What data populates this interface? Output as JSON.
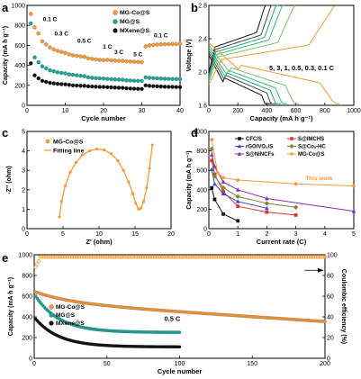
{
  "figure": {
    "panels": [
      {
        "id": "a",
        "letter": "a"
      },
      {
        "id": "b",
        "letter": "b"
      },
      {
        "id": "c",
        "letter": "c"
      },
      {
        "id": "d",
        "letter": "d"
      },
      {
        "id": "e",
        "letter": "e"
      }
    ]
  },
  "colors": {
    "mgco": "#F39A3B",
    "mg": "#1FA39A",
    "mxene": "#111111",
    "cfc": "#111111",
    "rgo": "#4040C8",
    "sninc": "#8A2BB0",
    "simchs": "#E03030",
    "scohc": "#7A8A2A",
    "mgcopanel": "#F39A3B"
  },
  "chart_data": [
    {
      "panel": "a",
      "type": "scatter",
      "xlabel": "Cycle number",
      "ylabel": "Capacity (mA h g⁻¹)",
      "xlim": [
        0,
        40
      ],
      "ylim": [
        0,
        1000
      ],
      "xticks": [
        "0",
        "10",
        "20",
        "30",
        "40"
      ],
      "yticks": [
        "0",
        "200",
        "400",
        "600",
        "800",
        "1000"
      ],
      "rate_labels": [
        "0.1 C",
        "0.3 C",
        "0.5 C",
        "1 C",
        "3 C",
        "5 C",
        "0.1 C"
      ],
      "legend": [
        "MG-Co@S",
        "MG@S",
        "MXene@S"
      ],
      "series": [
        {
          "name": "MG-Co@S",
          "x": [
            1,
            2,
            3,
            4,
            5,
            6,
            7,
            8,
            9,
            10,
            11,
            12,
            13,
            14,
            15,
            16,
            17,
            18,
            19,
            20,
            21,
            22,
            23,
            24,
            25,
            26,
            27,
            28,
            29,
            30,
            31,
            32,
            33,
            34,
            35,
            36,
            37,
            38,
            39,
            40
          ],
          "values": [
            915,
            780,
            720,
            640,
            610,
            580,
            560,
            545,
            535,
            525,
            510,
            500,
            495,
            490,
            485,
            470,
            465,
            460,
            455,
            452,
            455,
            450,
            448,
            446,
            445,
            440,
            438,
            436,
            434,
            432,
            590,
            600,
            605,
            608,
            610,
            612,
            612,
            613,
            614,
            615
          ]
        },
        {
          "name": "MG@S",
          "x": [
            1,
            2,
            3,
            4,
            5,
            6,
            7,
            8,
            9,
            10,
            11,
            12,
            13,
            14,
            15,
            16,
            17,
            18,
            19,
            20,
            21,
            22,
            23,
            24,
            25,
            26,
            27,
            28,
            29,
            30,
            31,
            32,
            33,
            34,
            35,
            36,
            37,
            38,
            39,
            40
          ],
          "values": [
            820,
            480,
            430,
            390,
            370,
            350,
            340,
            330,
            325,
            320,
            310,
            305,
            300,
            295,
            292,
            280,
            275,
            272,
            270,
            268,
            265,
            262,
            260,
            258,
            256,
            250,
            248,
            246,
            245,
            244,
            280,
            275,
            272,
            270,
            268,
            266,
            265,
            264,
            263,
            262
          ]
        },
        {
          "name": "MXene@S",
          "x": [
            1,
            2,
            3,
            4,
            5,
            6,
            7,
            8,
            9,
            10,
            11,
            12,
            13,
            14,
            15,
            16,
            17,
            18,
            19,
            20,
            21,
            22,
            23,
            24,
            25,
            26,
            27,
            28,
            29,
            30,
            31,
            32,
            33,
            34,
            35,
            36,
            37,
            38,
            39,
            40
          ],
          "values": [
            420,
            300,
            270,
            245,
            235,
            225,
            220,
            215,
            212,
            210,
            205,
            200,
            198,
            196,
            195,
            190,
            188,
            186,
            185,
            184,
            182,
            180,
            178,
            176,
            175,
            170,
            168,
            166,
            165,
            164,
            200,
            195,
            192,
            190,
            188,
            186,
            185,
            184,
            183,
            182
          ]
        }
      ]
    },
    {
      "panel": "b",
      "type": "line",
      "xlabel": "Capacity (mA h g⁻¹)",
      "ylabel": "Voltage (V)",
      "xlim": [
        0,
        1000
      ],
      "ylim": [
        1.6,
        2.8
      ],
      "xticks": [
        "0",
        "200",
        "400",
        "600",
        "800",
        "1000"
      ],
      "yticks": [
        "1.6",
        "2.0",
        "2.4",
        "2.8"
      ],
      "rates_label": "5, 3, 1, 0.5, 0.3, 0.1 C",
      "rates": [
        {
          "rate": "5",
          "color": "#111111",
          "discharge_end": 430
        },
        {
          "rate": "3",
          "color": "#444444",
          "discharge_end": 470
        },
        {
          "rate": "1",
          "color": "#1FA39A",
          "discharge_end": 500
        },
        {
          "rate": "0.5",
          "color": "#3CB878",
          "discharge_end": 540
        },
        {
          "rate": "0.3",
          "color": "#7CC06A",
          "discharge_end": 620
        },
        {
          "rate": "0.1",
          "color": "#F39A3B",
          "discharge_end": 900
        }
      ]
    },
    {
      "panel": "c",
      "type": "scatter",
      "xlabel": "Z' (ohm)",
      "ylabel": "-Z'' (ohm)",
      "xlim": [
        0,
        20
      ],
      "ylim": [
        0,
        5
      ],
      "xticks": [
        "0",
        "5",
        "10",
        "15",
        "20"
      ],
      "yticks": [
        "0",
        "1",
        "2",
        "3",
        "4",
        "5"
      ],
      "legend": [
        "MG-Co@S",
        "Fitting line"
      ],
      "series": [
        {
          "name": "MG-Co@S",
          "x": [
            4.5,
            4.8,
            5.3,
            6.0,
            6.8,
            7.7,
            8.7,
            9.7,
            10.7,
            11.7,
            12.6,
            13.4,
            14.1,
            14.7,
            15.1,
            15.5,
            15.8,
            16.2,
            16.6,
            17.0,
            17.4
          ],
          "values": [
            0.6,
            1.4,
            2.2,
            2.9,
            3.4,
            3.8,
            4.0,
            4.1,
            4.05,
            3.85,
            3.5,
            3.0,
            2.4,
            1.8,
            1.3,
            1.0,
            1.05,
            1.4,
            2.1,
            3.1,
            4.3
          ]
        }
      ]
    },
    {
      "panel": "d",
      "type": "line",
      "xlabel": "Current rate (C)",
      "ylabel": "Capacity (mA h g⁻¹)",
      "xlim": [
        0,
        5
      ],
      "ylim": [
        0,
        1000
      ],
      "xticks": [
        "0",
        "1",
        "2",
        "3",
        "4",
        "5"
      ],
      "yticks": [
        "0",
        "200",
        "400",
        "600",
        "800",
        "1000"
      ],
      "annotation": "This work",
      "legend": [
        "CFC/S",
        "S@IMCHS",
        "rGO/VO₂/S",
        "S@Coₓ-HC",
        "S@NiNCFs",
        "MG-Co@S"
      ],
      "series": [
        {
          "name": "CFC/S",
          "x": [
            0.1,
            0.2,
            0.5,
            1.0
          ],
          "values": [
            420,
            300,
            150,
            80
          ],
          "marker": "square"
        },
        {
          "name": "S@IMCHS",
          "x": [
            0.1,
            0.2,
            0.5,
            1.0,
            2.0,
            3.0
          ],
          "values": [
            700,
            560,
            380,
            230,
            170,
            140
          ],
          "marker": "square"
        },
        {
          "name": "rGO/VO₂/S",
          "x": [
            0.1,
            0.2,
            0.5,
            1.0,
            2.0
          ],
          "values": [
            610,
            460,
            360,
            280,
            210
          ],
          "marker": "triangle"
        },
        {
          "name": "S@Coₓ-HC",
          "x": [
            0.1,
            0.2,
            0.5,
            1.0,
            2.0,
            3.0
          ],
          "values": [
            820,
            540,
            420,
            330,
            260,
            220
          ],
          "marker": "diamond"
        },
        {
          "name": "S@NiNCFs",
          "x": [
            0.1,
            0.2,
            0.5,
            1.0,
            2.0,
            5.0
          ],
          "values": [
            760,
            640,
            480,
            400,
            310,
            180
          ],
          "marker": "triangle"
        },
        {
          "name": "MG-Co@S",
          "x": [
            0.1,
            0.3,
            0.5,
            1.0,
            3.0,
            5.0
          ],
          "values": [
            915,
            575,
            525,
            500,
            460,
            440
          ],
          "marker": "circle"
        }
      ]
    },
    {
      "panel": "e",
      "type": "scatter",
      "xlabel": "Cycle number",
      "ylabel": "Capacity (mA h g⁻¹)",
      "ylabel_right": "Coulombic efficiency (%)",
      "xlim": [
        0,
        200
      ],
      "ylim": [
        0,
        1000
      ],
      "ylim_right": [
        0,
        100
      ],
      "xticks": [
        "0",
        "50",
        "100",
        "150",
        "200"
      ],
      "yticks": [
        "0",
        "200",
        "400",
        "600",
        "800",
        "1000"
      ],
      "yticks_right": [
        "0",
        "20",
        "40",
        "60",
        "80",
        "100"
      ],
      "rate_label": "0.5 C",
      "legend": [
        "MG-Co@S",
        "MG@S",
        "MXene@S"
      ],
      "series": [
        {
          "name": "MG-Co@S",
          "start": 640,
          "end": 355,
          "n": 200,
          "shape": "linear-decay"
        },
        {
          "name": "MG@S",
          "start": 600,
          "end": 250,
          "n": 100,
          "shape": "fast-decay"
        },
        {
          "name": "MXene@S",
          "start": 380,
          "end": 110,
          "n": 100,
          "shape": "fast-decay"
        },
        {
          "name": "MG-Co@S CE",
          "start": 88,
          "end": 98,
          "n": 200,
          "shape": "ce"
        }
      ]
    }
  ]
}
